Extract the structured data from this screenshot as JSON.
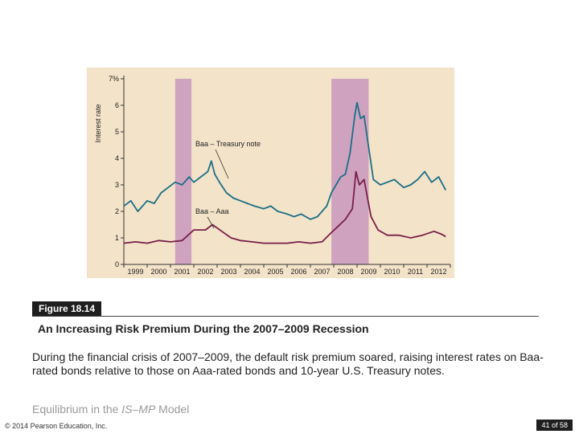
{
  "chart_data": {
    "type": "line",
    "ylabel": "Interest rate",
    "ylim": [
      0,
      7
    ],
    "yticks": [
      "0",
      "1",
      "2",
      "3",
      "4",
      "5",
      "6",
      "7%"
    ],
    "xlim": [
      1999,
      2013
    ],
    "xticks": [
      "1999",
      "2000",
      "2001",
      "2002",
      "2003",
      "2004",
      "2005",
      "2006",
      "2007",
      "2008",
      "2009",
      "2010",
      "2011",
      "2012"
    ],
    "recessions": [
      [
        2001.2,
        2001.9
      ],
      [
        2007.9,
        2009.5
      ]
    ],
    "annotations": [
      "Baa – Treasury note",
      "Baa – Aaa"
    ],
    "series": [
      {
        "name": "Baa – Treasury note",
        "color": "#1b6f86",
        "x": [
          1999.0,
          1999.3,
          1999.6,
          2000.0,
          2000.3,
          2000.6,
          2000.9,
          2001.2,
          2001.5,
          2001.8,
          2002.0,
          2002.3,
          2002.6,
          2002.75,
          2002.9,
          2003.1,
          2003.4,
          2003.7,
          2004.0,
          2004.3,
          2004.6,
          2005.0,
          2005.3,
          2005.6,
          2006.0,
          2006.3,
          2006.6,
          2007.0,
          2007.3,
          2007.5,
          2007.7,
          2007.9,
          2008.1,
          2008.3,
          2008.5,
          2008.7,
          2008.9,
          2009.0,
          2009.15,
          2009.3,
          2009.5,
          2009.7,
          2010.0,
          2010.3,
          2010.6,
          2011.0,
          2011.3,
          2011.6,
          2011.9,
          2012.2,
          2012.5,
          2012.8
        ],
        "y": [
          2.2,
          2.4,
          2.0,
          2.4,
          2.3,
          2.7,
          2.9,
          3.1,
          3.0,
          3.3,
          3.1,
          3.3,
          3.5,
          3.9,
          3.4,
          3.1,
          2.7,
          2.5,
          2.4,
          2.3,
          2.2,
          2.1,
          2.2,
          2.0,
          1.9,
          1.8,
          1.9,
          1.7,
          1.8,
          2.0,
          2.2,
          2.7,
          3.0,
          3.3,
          3.4,
          4.2,
          5.6,
          6.1,
          5.5,
          5.6,
          4.4,
          3.2,
          3.0,
          3.1,
          3.2,
          2.9,
          3.0,
          3.2,
          3.5,
          3.1,
          3.3,
          2.8
        ]
      },
      {
        "name": "Baa – Aaa",
        "color": "#7a1e4a",
        "x": [
          1999.0,
          1999.5,
          2000.0,
          2000.5,
          2001.0,
          2001.5,
          2002.0,
          2002.5,
          2002.8,
          2003.2,
          2003.6,
          2004.0,
          2004.5,
          2005.0,
          2005.5,
          2006.0,
          2006.5,
          2007.0,
          2007.5,
          2007.9,
          2008.2,
          2008.5,
          2008.8,
          2008.95,
          2009.1,
          2009.3,
          2009.6,
          2009.9,
          2010.3,
          2010.8,
          2011.3,
          2011.8,
          2012.3,
          2012.6,
          2012.8
        ],
        "y": [
          0.8,
          0.85,
          0.8,
          0.9,
          0.85,
          0.9,
          1.3,
          1.3,
          1.5,
          1.25,
          1.0,
          0.9,
          0.85,
          0.8,
          0.8,
          0.8,
          0.85,
          0.8,
          0.85,
          1.2,
          1.45,
          1.7,
          2.1,
          3.5,
          3.0,
          3.2,
          1.8,
          1.3,
          1.1,
          1.1,
          1.0,
          1.1,
          1.25,
          1.15,
          1.05
        ]
      }
    ]
  },
  "figure": {
    "label": "Figure 18.14",
    "title": "An Increasing Risk Premium During the 2007–2009 Recession",
    "caption": "During the financial crisis of 2007–2009, the default risk premium soared, raising interest rates on Baa-rated bonds relative to those on Aaa-rated bonds and 10-year U.S. Treasury notes."
  },
  "footer": {
    "section_prefix": "Equilibrium in the ",
    "section_model": "IS–MP",
    "section_suffix": " Model",
    "copyright": "© 2014 Pearson Education, Inc.",
    "page": "41 of 58"
  }
}
